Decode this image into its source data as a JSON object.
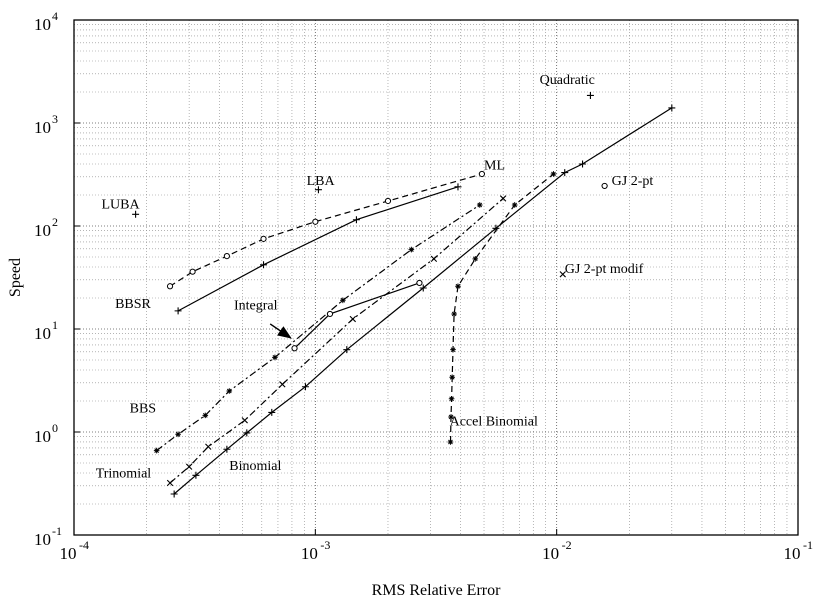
{
  "chart_data": {
    "type": "scatter",
    "title": "",
    "xlabel": "RMS Relative Error",
    "ylabel": "Speed",
    "xscale": "log",
    "yscale": "log",
    "xlim": [
      0.0001,
      0.1
    ],
    "ylim": [
      0.1,
      10000
    ],
    "grid": true,
    "x_ticks": [
      {
        "value": 0.0001,
        "base": "10",
        "exp": "-4"
      },
      {
        "value": 0.001,
        "base": "10",
        "exp": "-3"
      },
      {
        "value": 0.01,
        "base": "10",
        "exp": "-2"
      },
      {
        "value": 0.1,
        "base": "10",
        "exp": "-1"
      }
    ],
    "y_ticks": [
      {
        "value": 0.1,
        "base": "10",
        "exp": "-1"
      },
      {
        "value": 1,
        "base": "10",
        "exp": "0"
      },
      {
        "value": 10,
        "base": "10",
        "exp": "1"
      },
      {
        "value": 100,
        "base": "10",
        "exp": "2"
      },
      {
        "value": 1000,
        "base": "10",
        "exp": "3"
      },
      {
        "value": 10000,
        "base": "10",
        "exp": "4"
      }
    ],
    "series": [
      {
        "name": "Binomial",
        "line": "solid",
        "marker": "plus",
        "x": [
          0.00026,
          0.00032,
          0.00043,
          0.00052,
          0.00066,
          0.00091,
          0.00135,
          0.0028,
          0.0056,
          0.0108,
          0.0128,
          0.03
        ],
        "y": [
          0.25,
          0.38,
          0.68,
          0.98,
          1.55,
          2.75,
          6.3,
          25,
          95,
          330,
          400,
          1400
        ]
      },
      {
        "name": "Trinomial",
        "line": "dashdot",
        "marker": "x",
        "x": [
          0.00025,
          0.0003,
          0.00036,
          0.00051,
          0.00073,
          0.00143,
          0.0031,
          0.006
        ],
        "y": [
          0.32,
          0.46,
          0.72,
          1.3,
          2.9,
          12.5,
          48,
          185
        ]
      },
      {
        "name": "BBS",
        "line": "dashdot",
        "marker": "star",
        "x": [
          0.00022,
          0.00027,
          0.00035,
          0.00044,
          0.00068,
          0.0013,
          0.0025,
          0.0048
        ],
        "y": [
          0.66,
          0.95,
          1.45,
          2.5,
          5.3,
          19,
          59,
          160
        ]
      },
      {
        "name": "BBSR",
        "line": "solid",
        "marker": "plus",
        "x": [
          0.00027,
          0.00061,
          0.00148,
          0.0039
        ],
        "y": [
          15,
          42,
          115,
          240
        ]
      },
      {
        "name": "ML",
        "line": "dashed",
        "marker": "circle",
        "x": [
          0.00025,
          0.00031,
          0.00043,
          0.00061,
          0.001,
          0.002,
          0.0049
        ],
        "y": [
          26,
          36,
          51,
          75,
          110,
          175,
          320
        ]
      },
      {
        "name": "Integral",
        "line": "solid",
        "marker": "circle",
        "x": [
          0.00082,
          0.00115,
          0.0027
        ],
        "y": [
          6.5,
          14,
          28
        ]
      },
      {
        "name": "Accel Binomial",
        "line": "dashed",
        "marker": "star",
        "x": [
          0.00363,
          0.00365,
          0.00367,
          0.00369,
          0.00372,
          0.00376,
          0.0039,
          0.0046,
          0.0067,
          0.0097
        ],
        "y": [
          0.8,
          1.4,
          2.1,
          3.4,
          6.3,
          14,
          26,
          48,
          160,
          320
        ]
      },
      {
        "name": "Quadratic",
        "line": "none",
        "marker": "plus",
        "x": [
          0.0138
        ],
        "y": [
          1850
        ]
      },
      {
        "name": "LBA",
        "line": "none",
        "marker": "plus",
        "x": [
          0.00103
        ],
        "y": [
          225
        ]
      },
      {
        "name": "LUBA",
        "line": "none",
        "marker": "plus",
        "x": [
          0.00018
        ],
        "y": [
          130
        ]
      },
      {
        "name": "GJ 2-pt",
        "line": "none",
        "marker": "circle",
        "x": [
          0.0158
        ],
        "y": [
          245
        ]
      },
      {
        "name": "GJ 2-pt modif",
        "line": "none",
        "marker": "x",
        "x": [
          0.0106
        ],
        "y": [
          34
        ]
      }
    ],
    "annotations": [
      {
        "text": "Quadratic",
        "x": 0.0085,
        "y": 2400
      },
      {
        "text": "ML",
        "x": 0.005,
        "y": 355
      },
      {
        "text": "LBA",
        "x": 0.00092,
        "y": 250
      },
      {
        "text": "GJ 2-pt",
        "x": 0.0169,
        "y": 250
      },
      {
        "text": "LUBA",
        "x": 0.00013,
        "y": 148
      },
      {
        "text": "GJ 2-pt modif",
        "x": 0.0108,
        "y": 35
      },
      {
        "text": "BBSR",
        "x": 0.000148,
        "y": 16
      },
      {
        "text": "Integral",
        "x": 0.00046,
        "y": 15.5
      },
      {
        "text": "BBS",
        "x": 0.00017,
        "y": 1.55
      },
      {
        "text": "Accel Binomial",
        "x": 0.0036,
        "y": 1.15
      },
      {
        "text": "Binomial",
        "x": 0.00044,
        "y": 0.43
      },
      {
        "text": "Trinomial",
        "x": 0.000123,
        "y": 0.36
      }
    ],
    "arrows": [
      {
        "label": "Integral",
        "from": [
          0.00065,
          11.2
        ],
        "to": [
          0.00079,
          8.2
        ]
      }
    ]
  }
}
